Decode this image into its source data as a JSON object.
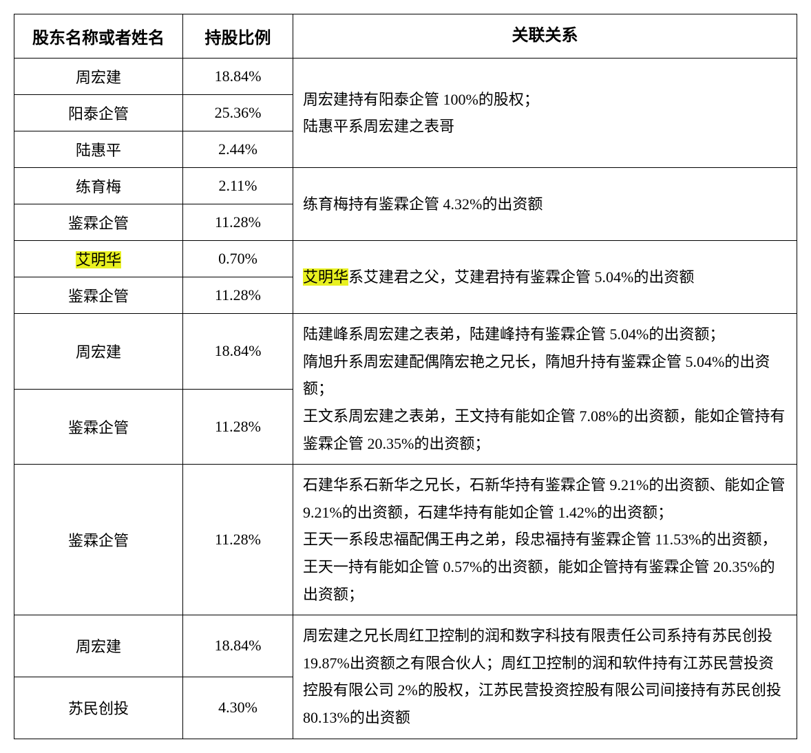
{
  "table": {
    "highlight_color": "#e8f020",
    "border_color": "#000000",
    "text_color": "#000000",
    "background_color": "#ffffff",
    "font_size": 22,
    "header_font_size": 24,
    "headers": {
      "name": "股东名称或者姓名",
      "ratio": "持股比例",
      "relation": "关联关系"
    },
    "groups": [
      {
        "rows": [
          {
            "name": "周宏建",
            "ratio": "18.84%"
          },
          {
            "name": "阳泰企管",
            "ratio": "25.36%"
          },
          {
            "name": "陆惠平",
            "ratio": "2.44%"
          }
        ],
        "relation": "周宏建持有阳泰企管 100%的股权；\n陆惠平系周宏建之表哥"
      },
      {
        "rows": [
          {
            "name": "练育梅",
            "ratio": "2.11%"
          },
          {
            "name": "鉴霖企管",
            "ratio": "11.28%"
          }
        ],
        "relation": "练育梅持有鉴霖企管 4.32%的出资额"
      },
      {
        "rows": [
          {
            "name": "艾明华",
            "ratio": "0.70%",
            "highlight_name": true
          },
          {
            "name": "鉴霖企管",
            "ratio": "11.28%"
          }
        ],
        "relation_prefix_highlight": "艾明华",
        "relation_rest": "系艾建君之父，艾建君持有鉴霖企管 5.04%的出资额"
      },
      {
        "rows": [
          {
            "name": "周宏建",
            "ratio": "18.84%"
          },
          {
            "name": "鉴霖企管",
            "ratio": "11.28%"
          }
        ],
        "relation": "陆建峰系周宏建之表弟，陆建峰持有鉴霖企管 5.04%的出资额；\n隋旭升系周宏建配偶隋宏艳之兄长，隋旭升持有鉴霖企管 5.04%的出资额；\n王文系周宏建之表弟，王文持有能如企管 7.08%的出资额，能如企管持有鉴霖企管 20.35%的出资额；"
      },
      {
        "rows": [
          {
            "name": "鉴霖企管",
            "ratio": "11.28%"
          }
        ],
        "relation": "石建华系石新华之兄长，石新华持有鉴霖企管 9.21%的出资额、能如企管 9.21%的出资额，石建华持有能如企管 1.42%的出资额；\n王天一系段忠福配偶王冉之弟，段忠福持有鉴霖企管 11.53%的出资额，王天一持有能如企管 0.57%的出资额，能如企管持有鉴霖企管 20.35%的出资额；"
      },
      {
        "rows": [
          {
            "name": "周宏建",
            "ratio": "18.84%"
          },
          {
            "name": "苏民创投",
            "ratio": "4.30%"
          }
        ],
        "relation": "周宏建之兄长周红卫控制的润和数字科技有限责任公司系持有苏民创投 19.87%出资额之有限合伙人；周红卫控制的润和软件持有江苏民营投资控股有限公司 2%的股权，江苏民营投资控股有限公司间接持有苏民创投 80.13%的出资额"
      }
    ]
  }
}
